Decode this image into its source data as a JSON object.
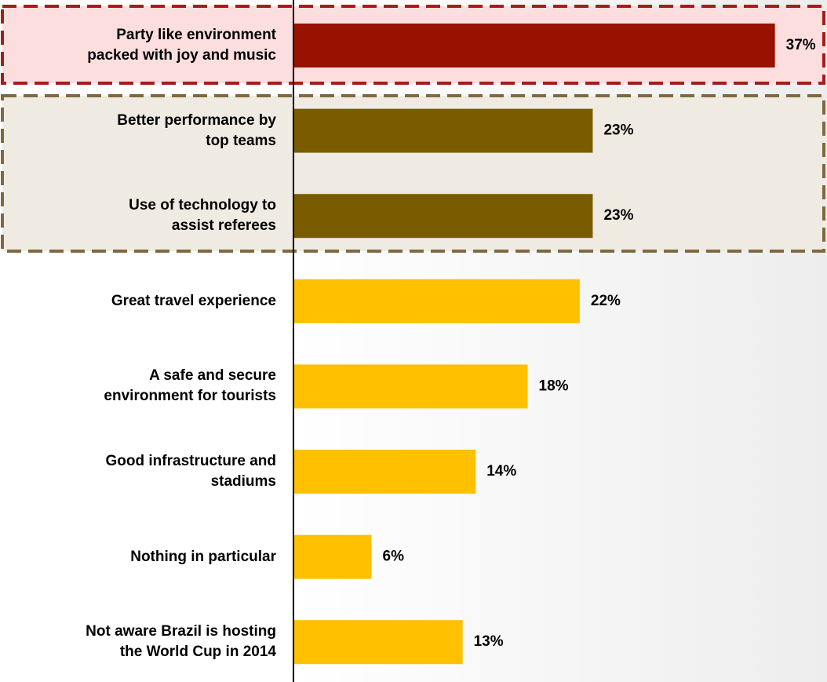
{
  "chart_data": {
    "type": "barh",
    "categories": [
      "Party like environment\npacked with joy and music",
      "Better performance by\ntop teams",
      "Use of technology to\nassist referees",
      "Great travel experience",
      "A safe and secure\nenvironment for tourists",
      "Good infrastructure and\nstadiums",
      "Nothing in particular",
      "Not aware Brazil is hosting\nthe World Cup in 2014"
    ],
    "values": [
      37,
      23,
      23,
      22,
      18,
      14,
      6,
      13
    ],
    "value_labels": [
      "37%",
      "23%",
      "23%",
      "22%",
      "18%",
      "14%",
      "6%",
      "13%"
    ],
    "colors": [
      "#991200",
      "#7a5c00",
      "#7a5c00",
      "#ffc000",
      "#ffc000",
      "#ffc000",
      "#ffc000",
      "#ffc000"
    ],
    "xlim": [
      0,
      41
    ]
  }
}
